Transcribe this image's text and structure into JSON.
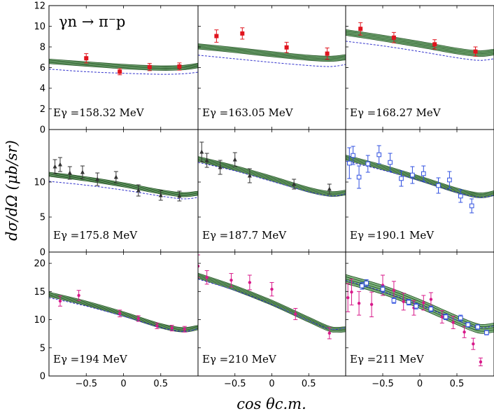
{
  "chart_data": {
    "type": "scatter",
    "reaction_label": "γn → π⁻p",
    "xlabel": "cos θc.m.",
    "ylabel": "dσ/dΩ (μb/sr)",
    "xlim": [
      -1,
      1
    ],
    "x_ticks": [
      "−0.5",
      "0",
      "0.5"
    ],
    "grid": false,
    "colors": {
      "band_fill": "#6aa86a",
      "band_line": "#1f4d1f",
      "dashed_line": "#3333cc",
      "red": "#e0141e",
      "black": "#333333",
      "blue": "#3050e0",
      "magenta": "#d81a8a"
    },
    "panels": [
      {
        "energy_label": "Eγ =158.32 MeV",
        "ylim": [
          0,
          12
        ],
        "yticks": [
          "0",
          "2",
          "4",
          "6",
          "8",
          "10",
          "12"
        ],
        "band": {
          "x": [
            -1,
            -0.5,
            0,
            0.5,
            0.8,
            1
          ],
          "center": [
            6.6,
            6.35,
            6.1,
            5.95,
            6.0,
            6.2
          ],
          "half": 0.22
        },
        "dashed": {
          "x": [
            -1,
            -0.5,
            0,
            0.5,
            0.8,
            1
          ],
          "y": [
            5.85,
            5.6,
            5.45,
            5.35,
            5.4,
            5.55
          ]
        },
        "series": [
          {
            "marker": "filled-square",
            "color": "#e0141e",
            "points": [
              [
                -0.5,
                6.9,
                0.45
              ],
              [
                -0.05,
                5.6,
                0.3
              ],
              [
                0.35,
                6.05,
                0.35
              ],
              [
                0.75,
                6.1,
                0.35
              ]
            ]
          }
        ]
      },
      {
        "energy_label": "Eγ =163.05 MeV",
        "ylim": [
          0,
          12
        ],
        "yticks": [],
        "band": {
          "x": [
            -1,
            -0.5,
            0,
            0.5,
            0.8,
            1
          ],
          "center": [
            8.05,
            7.7,
            7.3,
            6.95,
            6.85,
            7.0
          ],
          "half": 0.25
        },
        "dashed": {
          "x": [
            -1,
            -0.5,
            0,
            0.5,
            0.8,
            1
          ],
          "y": [
            7.2,
            6.85,
            6.5,
            6.2,
            6.1,
            6.3
          ]
        },
        "series": [
          {
            "marker": "filled-square",
            "color": "#e0141e",
            "points": [
              [
                -0.75,
                9.05,
                0.6
              ],
              [
                -0.4,
                9.3,
                0.55
              ],
              [
                0.2,
                7.95,
                0.5
              ],
              [
                0.75,
                7.35,
                0.55
              ]
            ]
          }
        ]
      },
      {
        "energy_label": "Eγ =168.27 MeV",
        "ylim": [
          0,
          12
        ],
        "yticks": [],
        "band": {
          "x": [
            -1,
            -0.5,
            0,
            0.5,
            0.8,
            1
          ],
          "center": [
            9.4,
            8.85,
            8.25,
            7.6,
            7.35,
            7.5
          ],
          "half": 0.28
        },
        "dashed": {
          "x": [
            -1,
            -0.5,
            0,
            0.5,
            0.8,
            1
          ],
          "y": [
            8.55,
            8.1,
            7.55,
            6.95,
            6.7,
            6.85
          ]
        },
        "series": [
          {
            "marker": "filled-square",
            "color": "#e0141e",
            "points": [
              [
                -0.8,
                9.75,
                0.6
              ],
              [
                -0.35,
                8.9,
                0.5
              ],
              [
                0.2,
                8.25,
                0.45
              ],
              [
                0.75,
                7.55,
                0.45
              ]
            ]
          }
        ]
      },
      {
        "energy_label": "Eγ =175.8 MeV",
        "ylim": [
          0,
          17.5
        ],
        "yticks": [
          "0",
          "5",
          "10"
        ],
        "band": {
          "x": [
            -1,
            -0.5,
            0,
            0.5,
            0.8,
            1
          ],
          "center": [
            11.1,
            10.45,
            9.6,
            8.6,
            8.2,
            8.4
          ],
          "half": 0.3
        },
        "dashed": {
          "x": [
            -1,
            -0.5,
            0,
            0.5,
            0.8,
            1
          ],
          "y": [
            10.1,
            9.55,
            8.85,
            8.0,
            7.6,
            7.8
          ]
        },
        "series": [
          {
            "marker": "filled-triangle",
            "color": "#333333",
            "points": [
              [
                -0.92,
                12.2,
                1.0
              ],
              [
                -0.85,
                12.5,
                1.0
              ],
              [
                -0.72,
                11.3,
                0.9
              ],
              [
                -0.55,
                11.4,
                0.9
              ],
              [
                -0.35,
                10.4,
                0.9
              ],
              [
                -0.1,
                10.7,
                0.8
              ],
              [
                0.2,
                8.8,
                0.8
              ],
              [
                0.5,
                8.1,
                0.7
              ],
              [
                0.75,
                8.0,
                0.7
              ]
            ]
          }
        ]
      },
      {
        "energy_label": "Eγ =187.7 MeV",
        "ylim": [
          0,
          17.5
        ],
        "yticks": [],
        "band": {
          "x": [
            -1,
            -0.5,
            0,
            0.5,
            0.8,
            1
          ],
          "center": [
            13.3,
            12.0,
            10.5,
            8.9,
            8.3,
            8.5
          ],
          "half": 0.35
        },
        "dashed": {
          "x": [
            -1,
            -0.5,
            0,
            0.5,
            0.8,
            1
          ],
          "y": [
            12.8,
            11.6,
            10.1,
            8.6,
            8.0,
            8.3
          ]
        },
        "series": [
          {
            "marker": "filled-triangle",
            "color": "#333333",
            "points": [
              [
                -0.95,
                14.3,
                1.4
              ],
              [
                -0.88,
                13.1,
                1.0
              ],
              [
                -0.7,
                12.1,
                1.0
              ],
              [
                -0.5,
                13.2,
                1.0
              ],
              [
                -0.3,
                10.9,
                1.0
              ],
              [
                0.3,
                9.7,
                0.7
              ],
              [
                0.78,
                9.0,
                0.7
              ]
            ]
          }
        ]
      },
      {
        "energy_label": "Eγ =190.1 MeV",
        "ylim": [
          0,
          17.5
        ],
        "yticks": [],
        "band": {
          "x": [
            -1,
            -0.5,
            0,
            0.5,
            0.8,
            1
          ],
          "center": [
            13.5,
            12.1,
            10.5,
            8.8,
            8.1,
            8.4
          ],
          "half": 0.35
        },
        "dashed": {
          "x": [
            -1,
            -0.5,
            0,
            0.5,
            0.8,
            1
          ],
          "y": [
            13.0,
            11.7,
            10.2,
            8.5,
            7.8,
            8.1
          ]
        },
        "series": [
          {
            "marker": "open-square",
            "color": "#3050e0",
            "points": [
              [
                -0.95,
                12.7,
                2.2
              ],
              [
                -0.9,
                13.8,
                1.3
              ],
              [
                -0.82,
                10.7,
                1.6
              ],
              [
                -0.7,
                12.6,
                1.2
              ],
              [
                -0.55,
                13.9,
                1.3
              ],
              [
                -0.4,
                12.8,
                1.3
              ],
              [
                -0.25,
                10.5,
                1.1
              ],
              [
                -0.1,
                11.0,
                1.2
              ],
              [
                0.05,
                11.2,
                1.1
              ],
              [
                0.25,
                9.5,
                1.1
              ],
              [
                0.4,
                10.3,
                1.2
              ],
              [
                0.55,
                8.0,
                0.9
              ],
              [
                0.7,
                6.6,
                1.0
              ]
            ]
          }
        ]
      },
      {
        "energy_label": "Eγ =194 MeV",
        "ylim": [
          0,
          22
        ],
        "yticks": [
          "0",
          "5",
          "10",
          "15",
          "20"
        ],
        "band": {
          "x": [
            -1,
            -0.5,
            0,
            0.5,
            0.8,
            1
          ],
          "center": [
            14.5,
            12.9,
            11.0,
            8.9,
            8.2,
            8.6
          ],
          "half": 0.4
        },
        "dashed": {
          "x": [
            -1,
            -0.5,
            0,
            0.5,
            0.8,
            1
          ],
          "y": [
            13.9,
            12.4,
            10.6,
            8.6,
            7.9,
            8.4
          ]
        },
        "series": [
          {
            "marker": "filled-circle",
            "color": "#d81a8a",
            "points": [
              [
                -0.85,
                13.3,
                0.9
              ],
              [
                -0.6,
                14.3,
                0.9
              ],
              [
                -0.05,
                11.1,
                0.6
              ],
              [
                0.2,
                10.2,
                0.5
              ],
              [
                0.45,
                8.9,
                0.5
              ],
              [
                0.65,
                8.5,
                0.5
              ],
              [
                0.82,
                8.3,
                0.5
              ]
            ]
          }
        ]
      },
      {
        "energy_label": "Eγ =210 MeV",
        "ylim": [
          0,
          22
        ],
        "yticks": [],
        "band": {
          "x": [
            -1,
            -0.5,
            0,
            0.5,
            0.8,
            1
          ],
          "center": [
            17.8,
            15.6,
            13.0,
            10.0,
            8.3,
            8.3
          ],
          "half": 0.45
        },
        "dashed": {
          "x": [
            -1,
            -0.5,
            0,
            0.5,
            0.8,
            1
          ],
          "y": [
            17.2,
            15.2,
            12.7,
            9.8,
            8.3,
            8.6
          ]
        },
        "series": [
          {
            "marker": "filled-circle",
            "color": "#d81a8a",
            "points": [
              [
                -1.0,
                19.5,
                2.0
              ],
              [
                -0.88,
                17.5,
                1.2
              ],
              [
                -0.55,
                17.0,
                1.2
              ],
              [
                -0.3,
                16.6,
                1.3
              ],
              [
                0.0,
                15.4,
                1.2
              ],
              [
                0.32,
                11.0,
                1.0
              ],
              [
                0.78,
                7.6,
                1.0
              ]
            ]
          }
        ]
      },
      {
        "energy_label": "Eγ =211 MeV",
        "ylim": [
          0,
          22
        ],
        "yticks": [],
        "band": {
          "x": [
            -1,
            -0.5,
            0,
            0.5,
            0.8,
            1
          ],
          "center": [
            17.2,
            15.3,
            12.8,
            9.9,
            8.4,
            8.6
          ],
          "half": 0.8
        },
        "dashed": {
          "x": [
            -1,
            -0.5,
            0,
            0.5,
            0.8,
            1
          ],
          "y": [
            17.0,
            15.0,
            12.6,
            9.9,
            8.6,
            8.9
          ]
        },
        "series": [
          {
            "marker": "filled-circle",
            "color": "#d81a8a",
            "points": [
              [
                -0.97,
                13.9,
                2.5
              ],
              [
                -0.92,
                14.9,
                2.3
              ],
              [
                -0.82,
                12.9,
                2.1
              ],
              [
                -0.65,
                12.7,
                2.2
              ],
              [
                -0.5,
                16.1,
                1.8
              ],
              [
                -0.35,
                15.2,
                1.6
              ],
              [
                -0.22,
                13.2,
                1.5
              ],
              [
                -0.08,
                12.1,
                1.3
              ],
              [
                0.05,
                13.0,
                1.3
              ],
              [
                0.15,
                13.6,
                1.2
              ],
              [
                0.3,
                10.5,
                1.1
              ],
              [
                0.45,
                9.5,
                1.1
              ],
              [
                0.6,
                7.8,
                1.0
              ],
              [
                0.72,
                5.7,
                1.0
              ],
              [
                0.82,
                2.5,
                0.7
              ]
            ]
          },
          {
            "marker": "open-square",
            "color": "#3050e0",
            "points": [
              [
                -0.78,
                16.0,
                0.6
              ],
              [
                -0.72,
                16.5,
                0.6
              ],
              [
                -0.5,
                15.4,
                0.6
              ],
              [
                -0.35,
                13.4,
                0.5
              ],
              [
                -0.15,
                13.1,
                0.5
              ],
              [
                -0.05,
                12.4,
                0.5
              ],
              [
                0.15,
                11.9,
                0.5
              ],
              [
                0.35,
                10.5,
                0.5
              ],
              [
                0.55,
                10.3,
                0.5
              ],
              [
                0.65,
                9.1,
                0.4
              ],
              [
                0.78,
                8.7,
                0.4
              ],
              [
                0.9,
                7.7,
                0.4
              ]
            ]
          }
        ]
      }
    ]
  }
}
